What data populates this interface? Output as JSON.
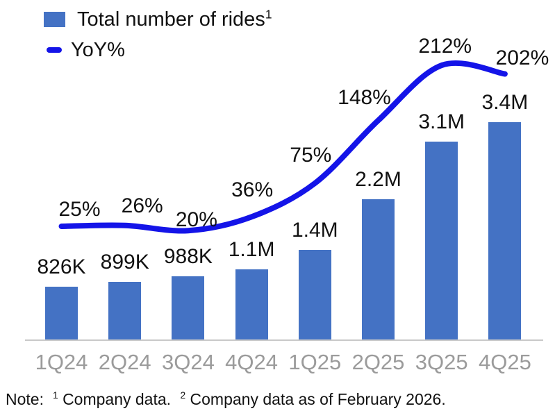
{
  "legend": {
    "bar_label": "Total number of rides",
    "bar_sup": "1",
    "line_label": "YoY%"
  },
  "note": {
    "label": "Note:",
    "sup1": "1",
    "text1": "Company data.",
    "sup2": "2",
    "text2": "Company data as of February 2026."
  },
  "colors": {
    "bar": "#4472C4",
    "line": "#1414E8",
    "axis": "#C8C8C8",
    "x_labels": "#9B9B9B",
    "text": "#111111"
  },
  "chart_data": {
    "type": "combo",
    "categories": [
      "1Q24",
      "2Q24",
      "3Q24",
      "4Q24",
      "1Q25",
      "2Q25",
      "3Q25",
      "4Q25"
    ],
    "series": [
      {
        "name": "Total number of rides",
        "type": "bar",
        "values": [
          826000,
          899000,
          988000,
          1100000,
          1400000,
          2200000,
          3100000,
          3400000
        ],
        "labels": [
          "826K",
          "899K",
          "988K",
          "1.1M",
          "1.4M",
          "2.2M",
          "3.1M",
          "3.4M"
        ]
      },
      {
        "name": "YoY%",
        "type": "line",
        "values": [
          25,
          26,
          20,
          36,
          75,
          148,
          212,
          202
        ],
        "labels": [
          "25%",
          "26%",
          "20%",
          "36%",
          "75%",
          "148%",
          "212%",
          "202%"
        ]
      }
    ],
    "legend_position": "top-left",
    "grid": false,
    "x_axis": "quarters",
    "y_axis_visible": false,
    "data_labels": true
  }
}
